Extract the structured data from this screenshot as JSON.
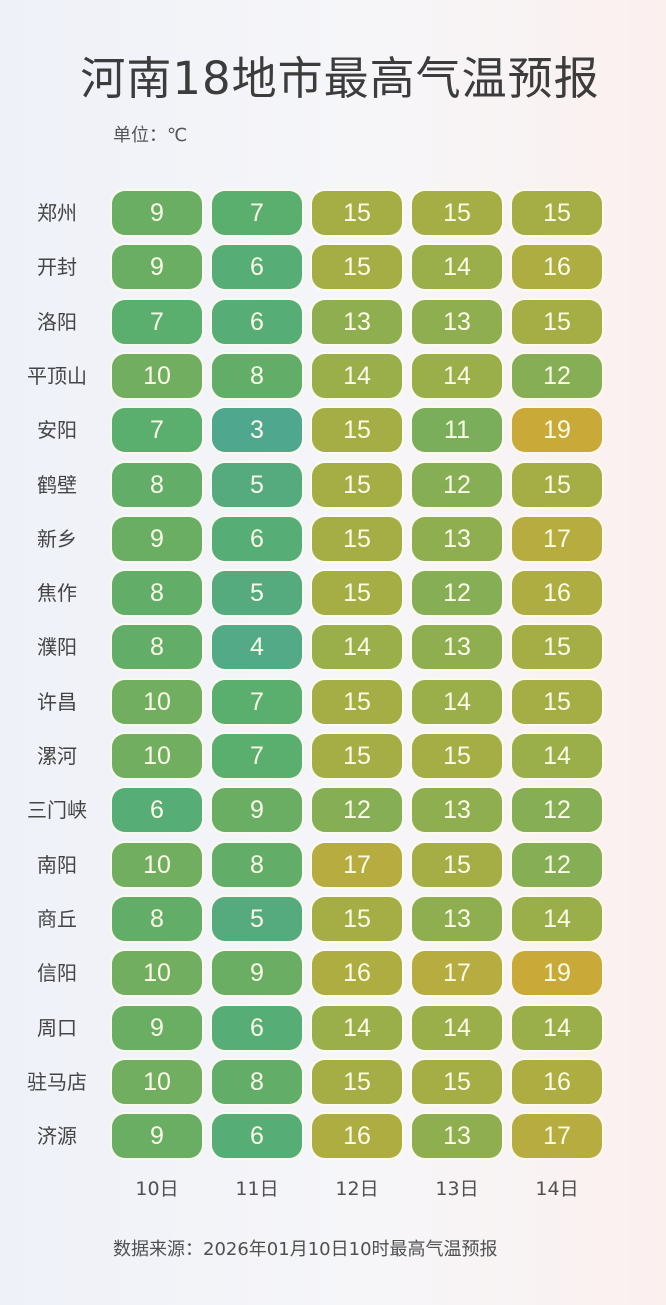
{
  "chart_data": {
    "type": "heatmap",
    "title": "河南18地市最高气温预报",
    "unit_label": "单位：℃",
    "columns": [
      "10日",
      "11日",
      "12日",
      "13日",
      "14日"
    ],
    "rows": [
      "郑州",
      "开封",
      "洛阳",
      "平顶山",
      "安阳",
      "鹤壁",
      "新乡",
      "焦作",
      "濮阳",
      "许昌",
      "漯河",
      "三门峡",
      "南阳",
      "商丘",
      "信阳",
      "周口",
      "驻马店",
      "济源"
    ],
    "values": [
      [
        9,
        7,
        15,
        15,
        15
      ],
      [
        9,
        6,
        15,
        14,
        16
      ],
      [
        7,
        6,
        13,
        13,
        15
      ],
      [
        10,
        8,
        14,
        14,
        12
      ],
      [
        7,
        3,
        15,
        11,
        19
      ],
      [
        8,
        5,
        15,
        12,
        15
      ],
      [
        9,
        6,
        15,
        13,
        17
      ],
      [
        8,
        5,
        15,
        12,
        16
      ],
      [
        8,
        4,
        14,
        13,
        15
      ],
      [
        10,
        7,
        15,
        14,
        15
      ],
      [
        10,
        7,
        15,
        15,
        14
      ],
      [
        6,
        9,
        12,
        13,
        12
      ],
      [
        10,
        8,
        17,
        15,
        12
      ],
      [
        8,
        5,
        15,
        13,
        14
      ],
      [
        10,
        9,
        16,
        17,
        19
      ],
      [
        9,
        6,
        14,
        14,
        14
      ],
      [
        10,
        8,
        15,
        15,
        16
      ],
      [
        9,
        6,
        16,
        13,
        17
      ]
    ],
    "color_scale": {
      "min": 3,
      "max": 19,
      "colors": [
        "#4fa88e",
        "#5aae6e",
        "#7aae5a",
        "#a4ae45",
        "#c9aa38"
      ]
    },
    "source": "数据来源：2026年01月10日10时最高气温预报"
  }
}
